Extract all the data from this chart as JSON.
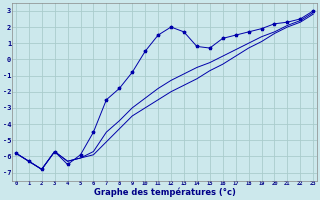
{
  "xlabel": "Graphe des températures (°c)",
  "background_color": "#cce8ec",
  "grid_color": "#aacccc",
  "line_color": "#0000aa",
  "x_ticks": [
    0,
    1,
    2,
    3,
    4,
    5,
    6,
    7,
    8,
    9,
    10,
    11,
    12,
    13,
    14,
    15,
    16,
    17,
    18,
    19,
    20,
    21,
    22,
    23
  ],
  "y_ticks": [
    -7,
    -6,
    -5,
    -4,
    -3,
    -2,
    -1,
    0,
    1,
    2,
    3
  ],
  "xlim": [
    -0.3,
    23.3
  ],
  "ylim": [
    -7.5,
    3.5
  ],
  "line1_x": [
    0,
    1,
    2,
    3,
    4,
    5,
    6,
    7,
    8,
    9,
    10,
    11,
    12,
    13,
    14,
    15,
    16,
    17,
    18,
    19,
    20,
    21,
    22,
    23
  ],
  "line1_y": [
    -5.8,
    -6.3,
    -6.8,
    -5.7,
    -6.5,
    -5.9,
    -4.5,
    -2.5,
    -1.8,
    -0.8,
    0.5,
    1.5,
    2.0,
    1.7,
    0.8,
    0.7,
    1.3,
    1.5,
    1.7,
    1.9,
    2.2,
    2.3,
    2.5,
    3.0
  ],
  "line2_x": [
    0,
    1,
    2,
    3,
    4,
    5,
    6,
    7,
    8,
    9,
    10,
    11,
    12,
    13,
    14,
    15,
    16,
    17,
    18,
    19,
    20,
    21,
    22,
    23
  ],
  "line2_y": [
    -5.8,
    -6.3,
    -6.8,
    -5.7,
    -6.3,
    -6.1,
    -5.7,
    -4.5,
    -3.8,
    -3.0,
    -2.4,
    -1.8,
    -1.3,
    -0.9,
    -0.5,
    -0.2,
    0.2,
    0.6,
    1.0,
    1.4,
    1.7,
    2.1,
    2.4,
    2.9
  ],
  "line3_x": [
    0,
    1,
    2,
    3,
    4,
    5,
    6,
    7,
    8,
    9,
    10,
    11,
    12,
    13,
    14,
    15,
    16,
    17,
    18,
    19,
    20,
    21,
    22,
    23
  ],
  "line3_y": [
    -5.8,
    -6.3,
    -6.8,
    -5.7,
    -6.3,
    -6.1,
    -5.9,
    -5.1,
    -4.3,
    -3.5,
    -3.0,
    -2.5,
    -2.0,
    -1.6,
    -1.2,
    -0.7,
    -0.3,
    0.2,
    0.7,
    1.1,
    1.6,
    2.0,
    2.3,
    2.8
  ]
}
